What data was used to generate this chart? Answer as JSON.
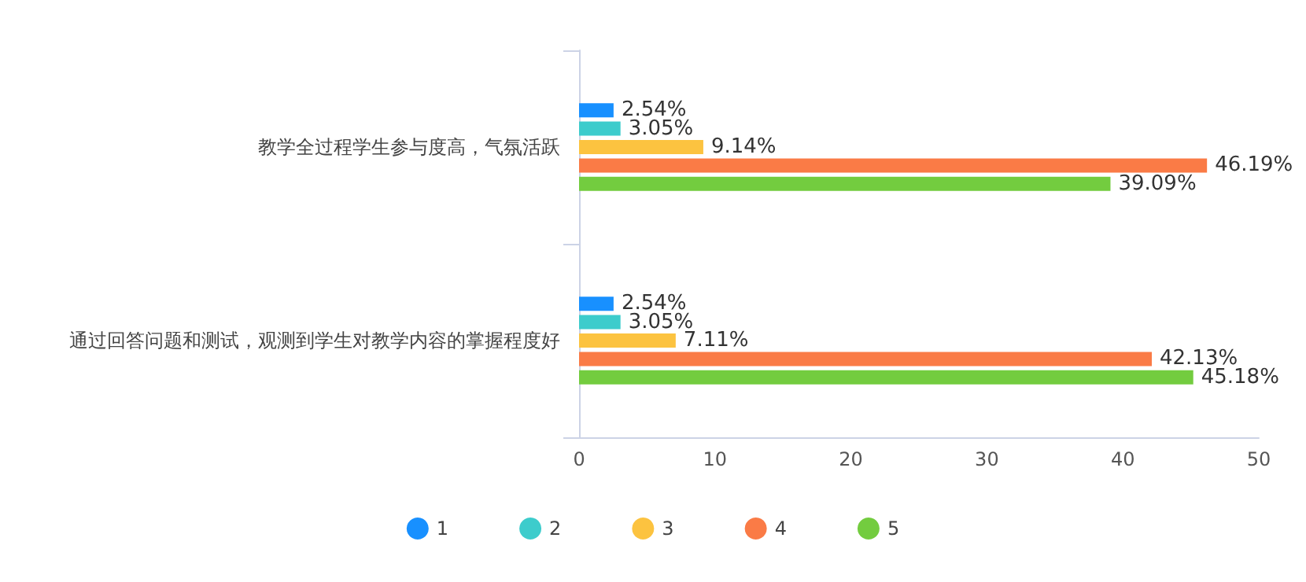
{
  "chart_data": {
    "type": "bar",
    "orientation": "horizontal",
    "categories": [
      "教学全过程学生参与度高，气氛活跃",
      "通过回答问题和测试，观测到学生对教学内容的掌握程度好"
    ],
    "series": [
      {
        "name": "1",
        "color": "#1890ff",
        "values": [
          2.54,
          2.54
        ],
        "value_labels": [
          "2.54%",
          "2.54%"
        ]
      },
      {
        "name": "2",
        "color": "#3dcccc",
        "values": [
          3.05,
          3.05
        ],
        "value_labels": [
          "3.05%",
          "3.05%"
        ]
      },
      {
        "name": "3",
        "color": "#fcc340",
        "values": [
          9.14,
          7.11
        ],
        "value_labels": [
          "9.14%",
          "7.11%"
        ]
      },
      {
        "name": "4",
        "color": "#fa7b46",
        "values": [
          46.19,
          42.13
        ],
        "value_labels": [
          "46.19%",
          "42.13%"
        ]
      },
      {
        "name": "5",
        "color": "#73cc3f",
        "values": [
          39.09,
          45.18
        ],
        "value_labels": [
          "39.09%",
          "45.18%"
        ]
      }
    ],
    "xlim": [
      0,
      50
    ],
    "xticks": [
      0,
      10,
      20,
      30,
      40,
      50
    ],
    "grid": false,
    "legend": "bottom"
  }
}
